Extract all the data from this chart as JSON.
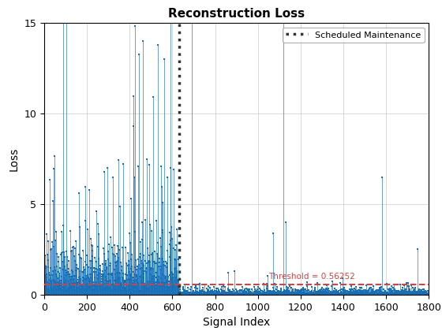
{
  "title": "Reconstruction Loss",
  "xlabel": "Signal Index",
  "ylabel": "Loss",
  "xlim": [
    0,
    1800
  ],
  "ylim": [
    0,
    15
  ],
  "threshold": 0.56252,
  "threshold_label": "Threshold = 0.56252",
  "threshold_color": "#cc4444",
  "vline_x": 632,
  "vline_color": "#333333",
  "vline_label": "Scheduled Maintenance",
  "stem_color": "#1570b8",
  "background_color": "#ffffff",
  "grid_color": "#c0c0c0",
  "n_dense": 630,
  "n_total": 1800,
  "seed": 7
}
